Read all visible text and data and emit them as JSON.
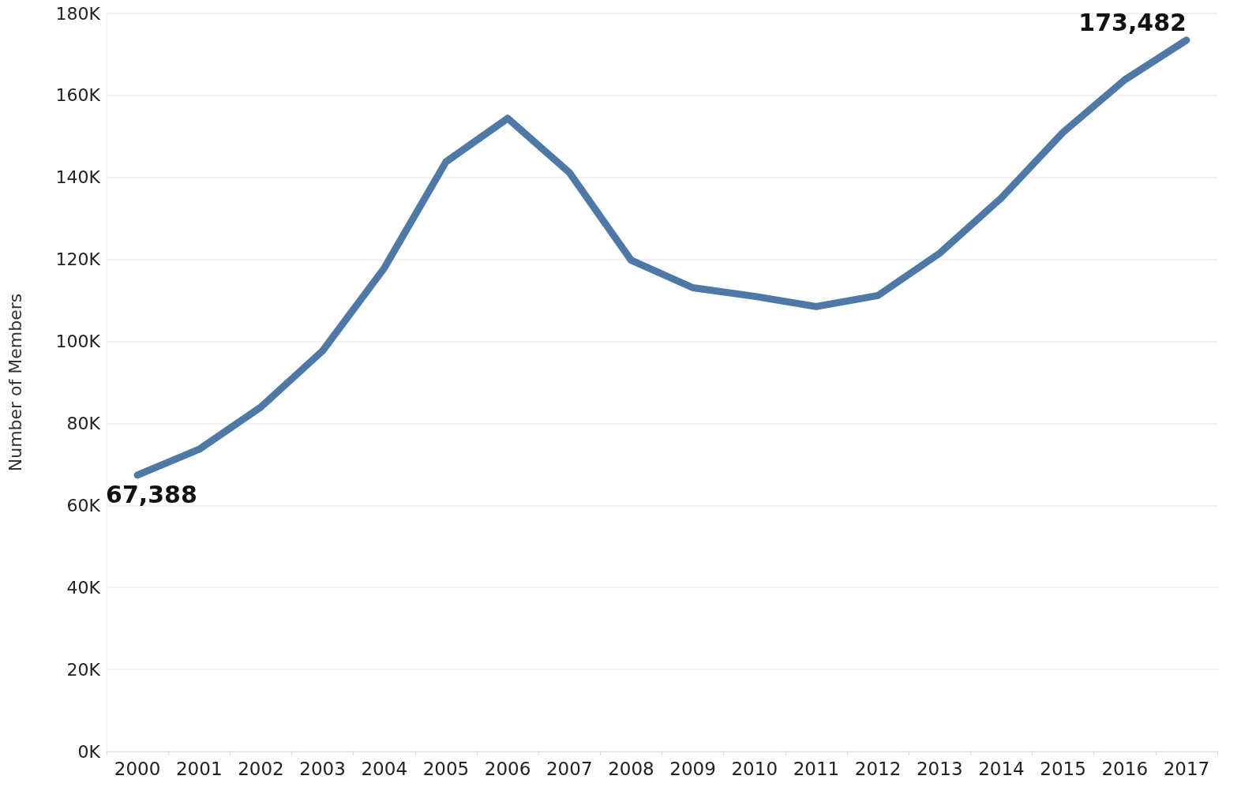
{
  "chart_data": {
    "type": "line",
    "ylabel": "Number of Members",
    "categories": [
      "2000",
      "2001",
      "2002",
      "2003",
      "2004",
      "2005",
      "2006",
      "2007",
      "2008",
      "2009",
      "2010",
      "2011",
      "2012",
      "2013",
      "2014",
      "2015",
      "2016",
      "2017"
    ],
    "series": [
      {
        "color": "#4e79a7",
        "values": [
          67388,
          73700,
          84000,
          97700,
          117900,
          143800,
          154400,
          141200,
          119800,
          113100,
          111000,
          108500,
          111200,
          121500,
          135000,
          151000,
          163800,
          173482
        ],
        "value_labels": [
          "67,388",
          null,
          null,
          null,
          null,
          null,
          null,
          null,
          null,
          null,
          null,
          null,
          null,
          null,
          null,
          null,
          null,
          "173,482"
        ]
      }
    ],
    "ylim": [
      0,
      180000
    ],
    "yticks": [
      {
        "value": 0,
        "label": "0K"
      },
      {
        "value": 20000,
        "label": "20K"
      },
      {
        "value": 40000,
        "label": "40K"
      },
      {
        "value": 60000,
        "label": "60K"
      },
      {
        "value": 80000,
        "label": "80K"
      },
      {
        "value": 100000,
        "label": "100K"
      },
      {
        "value": 120000,
        "label": "120K"
      },
      {
        "value": 140000,
        "label": "140K"
      },
      {
        "value": 160000,
        "label": "160K"
      },
      {
        "value": 180000,
        "label": "180K"
      }
    ],
    "grid": "y",
    "marker": "none",
    "line_style": "solid"
  }
}
